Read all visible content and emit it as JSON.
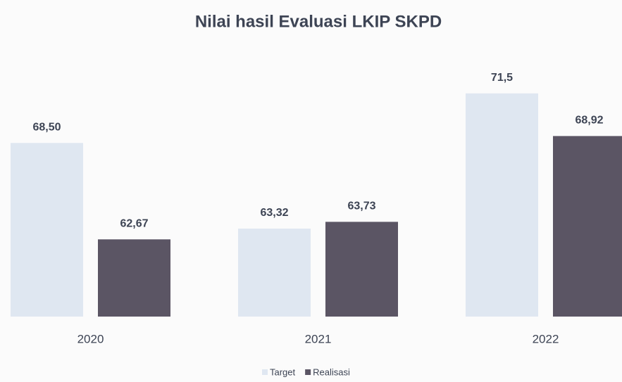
{
  "chart_data": {
    "type": "bar",
    "title": "Nilai hasil Evaluasi LKIP SKPD",
    "categories": [
      "2020",
      "2021",
      "2022"
    ],
    "series": [
      {
        "name": "Target",
        "color": "#dfe7f1",
        "values": [
          68.5,
          63.32,
          71.5
        ],
        "value_labels": [
          "68,50",
          "63,32",
          "71,5"
        ]
      },
      {
        "name": "Realisasi",
        "color": "#5b5564",
        "values": [
          62.67,
          63.73,
          68.92
        ],
        "value_labels": [
          "62,67",
          "63,73",
          "68,92"
        ]
      }
    ],
    "ylim": [
      58,
      74
    ],
    "legend": "bottom"
  }
}
